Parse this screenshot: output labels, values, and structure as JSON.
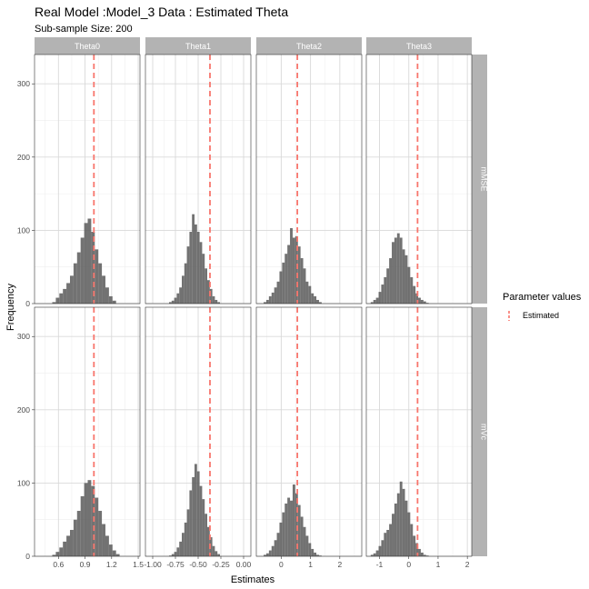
{
  "colors": {
    "strip_bg": "#b3b3b3",
    "strip_text": "#ffffff",
    "bar_fill": "#595959",
    "estimated_line": "#f8766d",
    "grid_major": "#d9d9d9",
    "grid_minor": "#eeeeee",
    "panel_border": "#333333"
  },
  "chart_data": {
    "type": "bar",
    "title": "Real Model :Model_3 Data : Estimated Theta",
    "subtitle": "Sub-sample Size: 200",
    "xlabel": "Estimates",
    "ylabel": "Frequency",
    "ylim": [
      0,
      340
    ],
    "y_ticks": [
      0,
      100,
      200,
      300
    ],
    "y_tick_labels": [
      "0",
      "100",
      "200",
      "300"
    ],
    "grid": true,
    "legend": {
      "title": "Parameter values",
      "position": "right",
      "entries": [
        {
          "label": "Estimated",
          "style": "dashed-line"
        }
      ]
    },
    "columns": [
      "Theta0",
      "Theta1",
      "Theta2",
      "Theta3"
    ],
    "rows": [
      "mMSE",
      "mVc"
    ],
    "x_axes": [
      {
        "column": "Theta0",
        "xlim": [
          0.33,
          1.52
        ],
        "ticks": [
          0.6,
          0.9,
          1.2,
          1.5
        ],
        "tick_labels": [
          "0.6",
          "0.9",
          "1.2",
          "1.5"
        ],
        "estimated": 1.0
      },
      {
        "column": "Theta1",
        "xlim": [
          -1.08,
          0.08
        ],
        "ticks": [
          -1.0,
          -0.75,
          -0.5,
          -0.25,
          0.0
        ],
        "tick_labels": [
          "-1.00",
          "-0.75",
          "-0.50",
          "-0.25",
          "0.00"
        ],
        "estimated": -0.37
      },
      {
        "column": "Theta2",
        "xlim": [
          -0.85,
          2.75
        ],
        "ticks": [
          0,
          1,
          2
        ],
        "tick_labels": [
          "0",
          "1",
          "2"
        ],
        "estimated": 0.55
      },
      {
        "column": "Theta3",
        "xlim": [
          -1.45,
          2.15
        ],
        "ticks": [
          -1,
          0,
          1,
          2
        ],
        "tick_labels": [
          "-1",
          "0",
          "1",
          "2"
        ],
        "estimated": 0.3
      }
    ],
    "histograms": [
      {
        "row": "mMSE",
        "column": "Theta0",
        "bin_start": 0.53,
        "bin_width": 0.04,
        "counts": [
          2,
          8,
          14,
          20,
          28,
          38,
          55,
          70,
          90,
          110,
          116,
          98,
          74,
          55,
          38,
          22,
          10,
          4
        ]
      },
      {
        "row": "mMSE",
        "column": "Theta1",
        "bin_start": -0.82,
        "bin_width": 0.028,
        "counts": [
          2,
          4,
          8,
          14,
          22,
          38,
          55,
          78,
          98,
          122,
          108,
          98,
          84,
          68,
          48,
          32,
          20,
          10,
          5,
          2
        ]
      },
      {
        "row": "mMSE",
        "column": "Theta2",
        "bin_start": -0.6,
        "bin_width": 0.09,
        "counts": [
          2,
          5,
          10,
          15,
          22,
          30,
          44,
          56,
          68,
          80,
          103,
          90,
          92,
          78,
          62,
          48,
          30,
          24,
          14,
          10,
          5,
          2
        ]
      },
      {
        "row": "mMSE",
        "column": "Theta3",
        "bin_start": -1.3,
        "bin_width": 0.09,
        "counts": [
          2,
          5,
          8,
          16,
          26,
          36,
          48,
          62,
          84,
          90,
          96,
          90,
          74,
          66,
          50,
          36,
          24,
          14,
          8,
          5,
          3,
          1
        ]
      },
      {
        "row": "mVc",
        "column": "Theta0",
        "bin_start": 0.53,
        "bin_width": 0.04,
        "counts": [
          2,
          6,
          12,
          20,
          28,
          36,
          50,
          62,
          82,
          100,
          104,
          96,
          80,
          62,
          44,
          28,
          16,
          8,
          3
        ]
      },
      {
        "row": "mVc",
        "column": "Theta1",
        "bin_start": -0.82,
        "bin_width": 0.028,
        "counts": [
          1,
          3,
          6,
          12,
          20,
          32,
          46,
          64,
          90,
          108,
          126,
          116,
          96,
          78,
          58,
          40,
          26,
          14,
          7,
          3
        ]
      },
      {
        "row": "mVc",
        "column": "Theta2",
        "bin_start": -0.6,
        "bin_width": 0.09,
        "counts": [
          2,
          4,
          8,
          14,
          22,
          32,
          46,
          60,
          72,
          80,
          76,
          98,
          86,
          70,
          54,
          40,
          28,
          18,
          10,
          5,
          2,
          1
        ]
      },
      {
        "row": "mVc",
        "column": "Theta3",
        "bin_start": -1.3,
        "bin_width": 0.09,
        "counts": [
          2,
          4,
          8,
          14,
          22,
          32,
          36,
          44,
          58,
          72,
          86,
          102,
          92,
          76,
          60,
          44,
          28,
          18,
          10,
          5,
          2,
          1
        ]
      }
    ]
  }
}
